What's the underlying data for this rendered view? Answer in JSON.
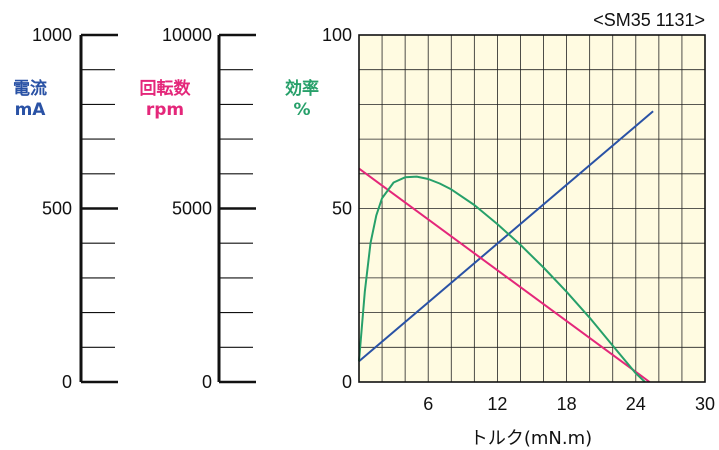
{
  "chart_data": {
    "type": "line",
    "title": "<SM35 1131>",
    "xlabel": "トルク(mN.m)",
    "xlim": [
      0,
      30
    ],
    "x_ticks": [
      "6",
      "12",
      "18",
      "24",
      "30"
    ],
    "grid": true,
    "background_color": "#fffbe1",
    "axes": {
      "current": {
        "label": "電流",
        "unit": "mA",
        "color": "#2a52a5",
        "range": [
          0,
          1000
        ],
        "ticks": [
          "0",
          "500",
          "1000"
        ]
      },
      "speed": {
        "label": "回転数",
        "unit": "rpm",
        "color": "#e4277a",
        "range": [
          0,
          10000
        ],
        "ticks": [
          "0",
          "5000",
          "10000"
        ]
      },
      "efficiency": {
        "label": "効率",
        "unit": "%",
        "color": "#27a06a",
        "range": [
          0,
          100
        ],
        "ticks": [
          "0",
          "50",
          "100"
        ]
      }
    },
    "series": [
      {
        "axis": "current",
        "color": "#2a52a5",
        "x": [
          0,
          25.5
        ],
        "y": [
          60,
          780
        ]
      },
      {
        "axis": "speed",
        "color": "#e4277a",
        "x": [
          0,
          25.2
        ],
        "y": [
          6150,
          0
        ]
      },
      {
        "axis": "efficiency",
        "color": "#27a06a",
        "x": [
          0,
          0.5,
          1,
          1.5,
          2,
          3,
          4,
          5,
          6,
          7,
          8,
          10,
          12,
          14,
          16,
          18,
          20,
          22,
          24,
          24.8
        ],
        "y": [
          6,
          26,
          40,
          48,
          53,
          57.5,
          59,
          59.2,
          58.5,
          57.2,
          55.5,
          51,
          45.5,
          39.5,
          33,
          26,
          18.5,
          10.5,
          2.5,
          0
        ]
      }
    ]
  }
}
